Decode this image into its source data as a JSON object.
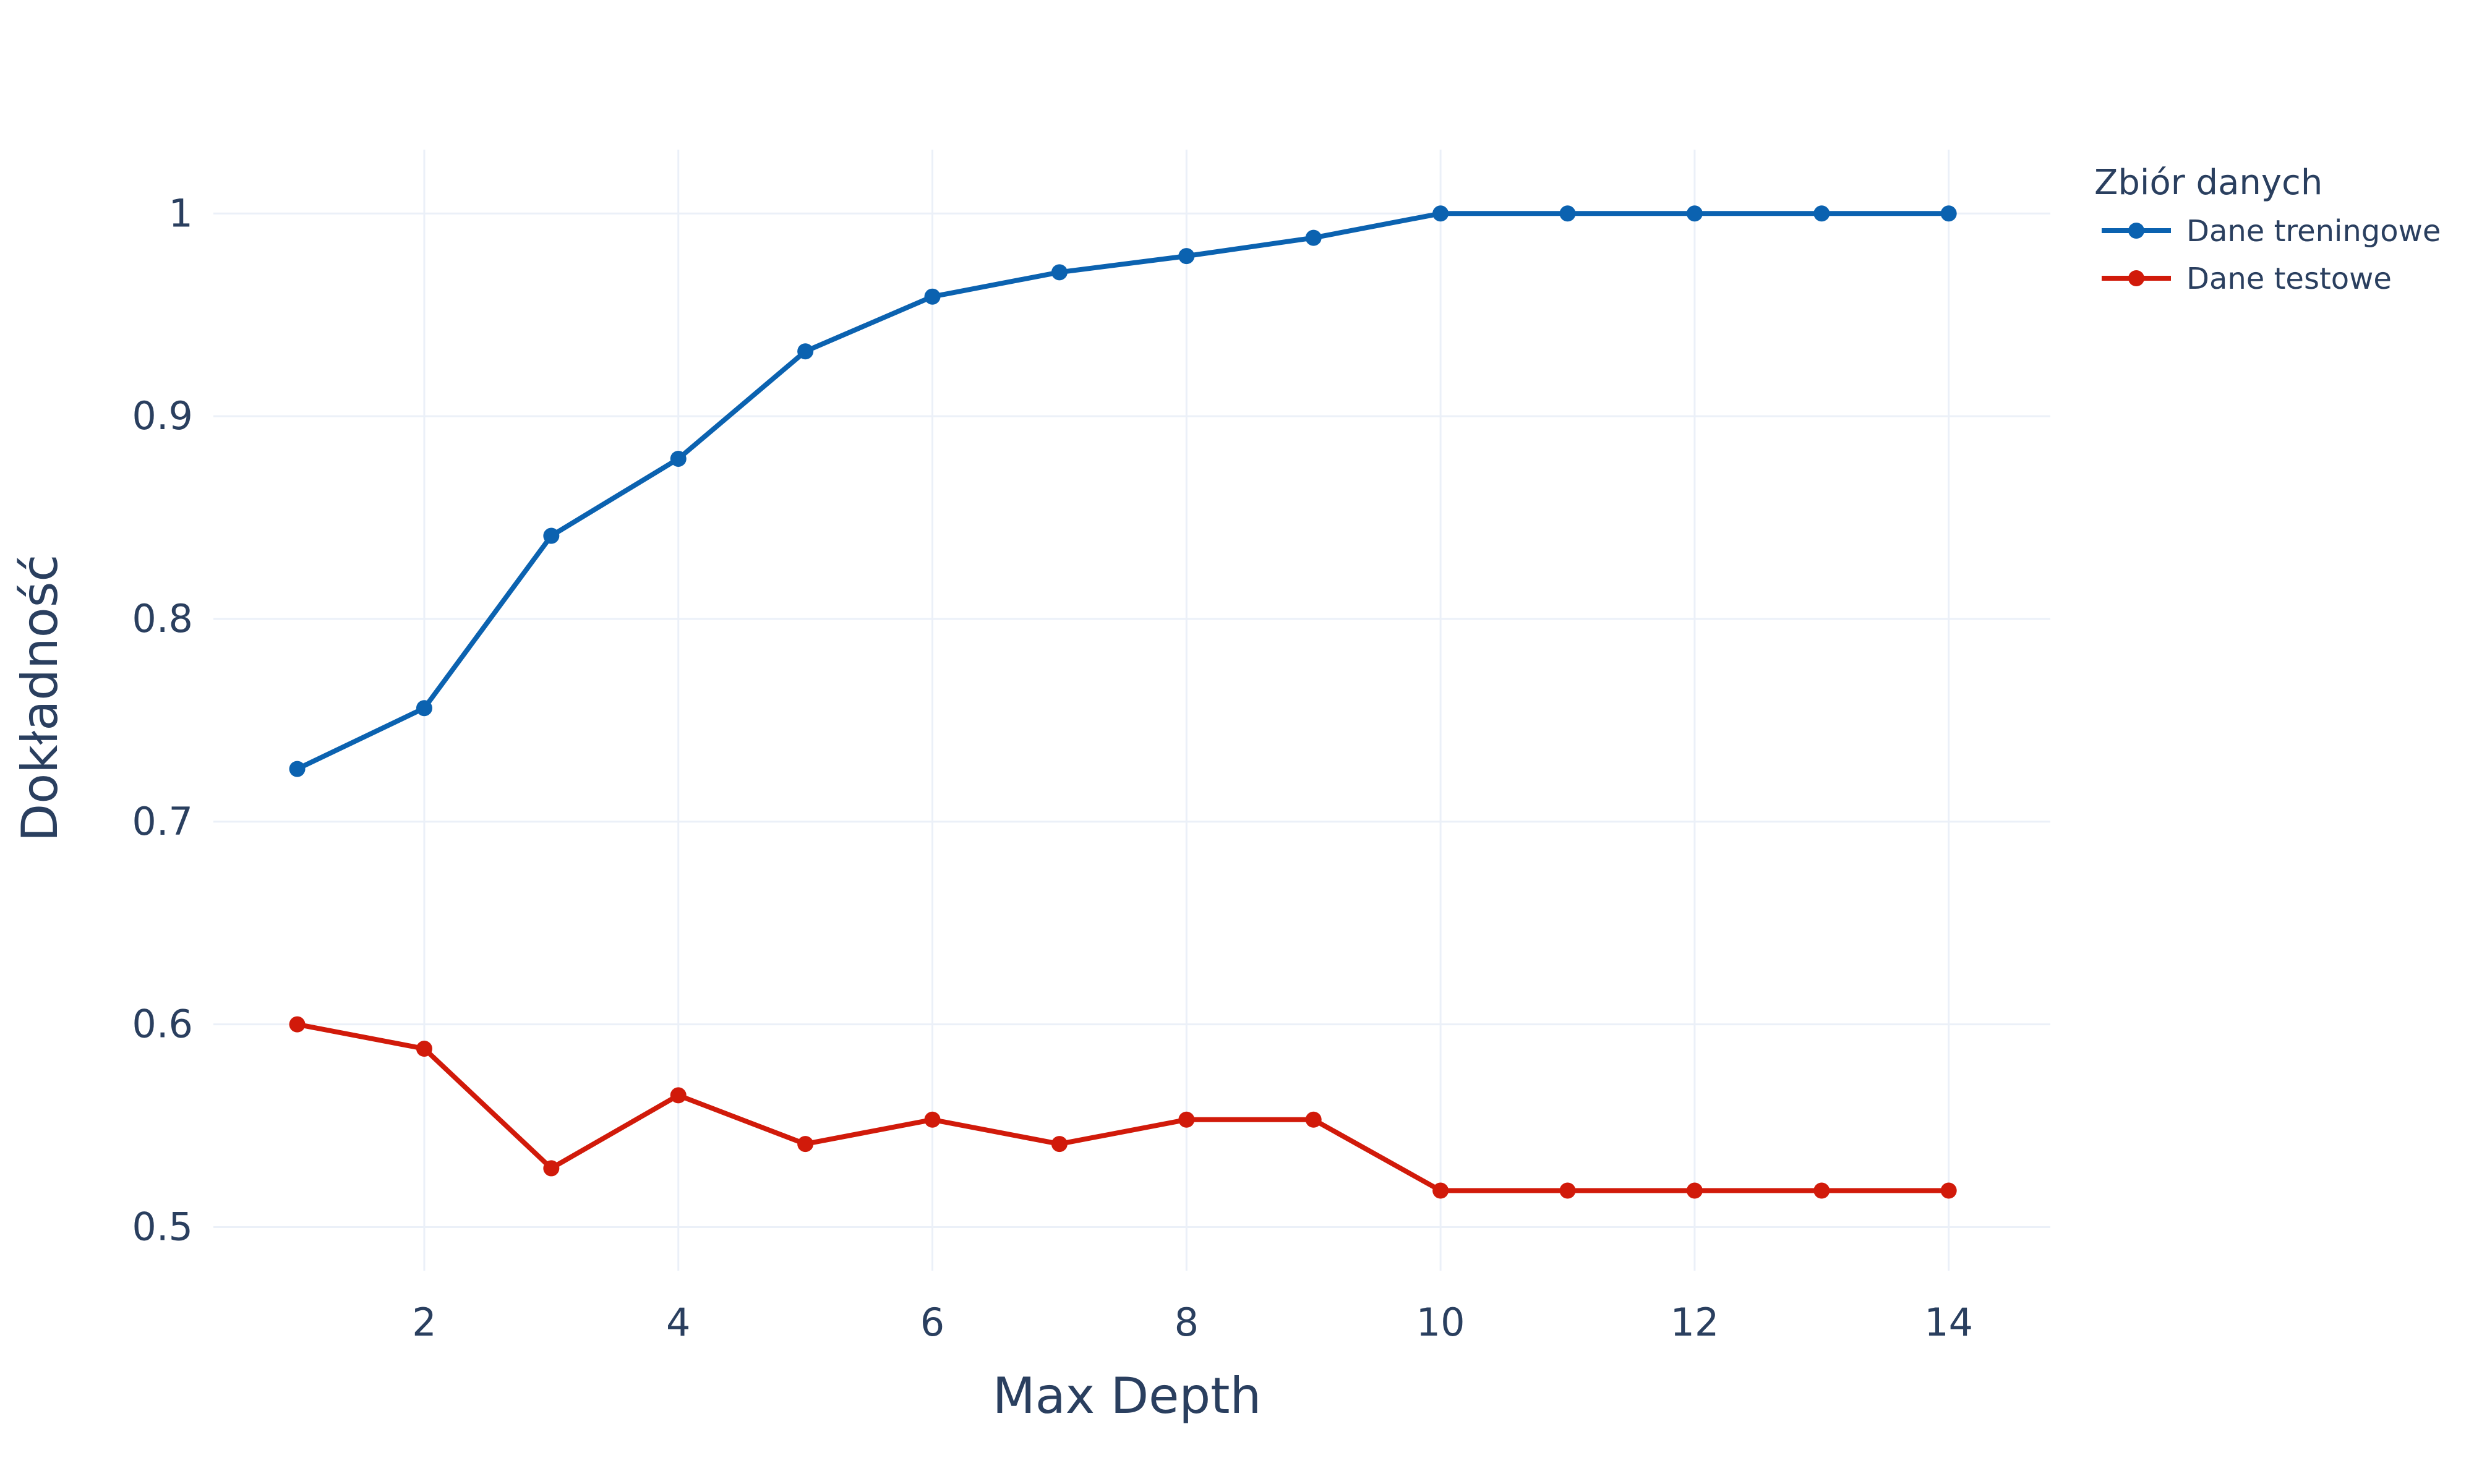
{
  "chart_data": {
    "type": "line",
    "title": "",
    "xlabel": "Max Depth",
    "ylabel": "Dokładność",
    "xlim": [
      0.34,
      14.8
    ],
    "ylim": [
      0.4785,
      1.0315
    ],
    "x_ticks": [
      2,
      4,
      6,
      8,
      10,
      12,
      14
    ],
    "y_ticks": [
      0.5,
      0.6,
      0.7,
      0.8,
      0.9,
      1
    ],
    "y_tick_labels": [
      "0.5",
      "0.6",
      "0.7",
      "0.8",
      "0.9",
      "1"
    ],
    "grid": true,
    "legend_title": "Zbiór danych",
    "legend_placement": "top-right, outside plot",
    "x": [
      1,
      2,
      3,
      4,
      5,
      6,
      7,
      8,
      9,
      10,
      11,
      12,
      13,
      14
    ],
    "series": [
      {
        "name": "Dane treningowe",
        "color": "#0b62b0",
        "values": [
          0.726,
          0.756,
          0.841,
          0.879,
          0.932,
          0.959,
          0.971,
          0.979,
          0.988,
          1.0,
          1.0,
          1.0,
          1.0,
          1.0
        ]
      },
      {
        "name": "Dane testowe",
        "color": "#d11a0a",
        "values": [
          0.6,
          0.588,
          0.529,
          0.565,
          0.541,
          0.553,
          0.541,
          0.553,
          0.553,
          0.518,
          0.518,
          0.518,
          0.518,
          0.518
        ]
      }
    ]
  }
}
